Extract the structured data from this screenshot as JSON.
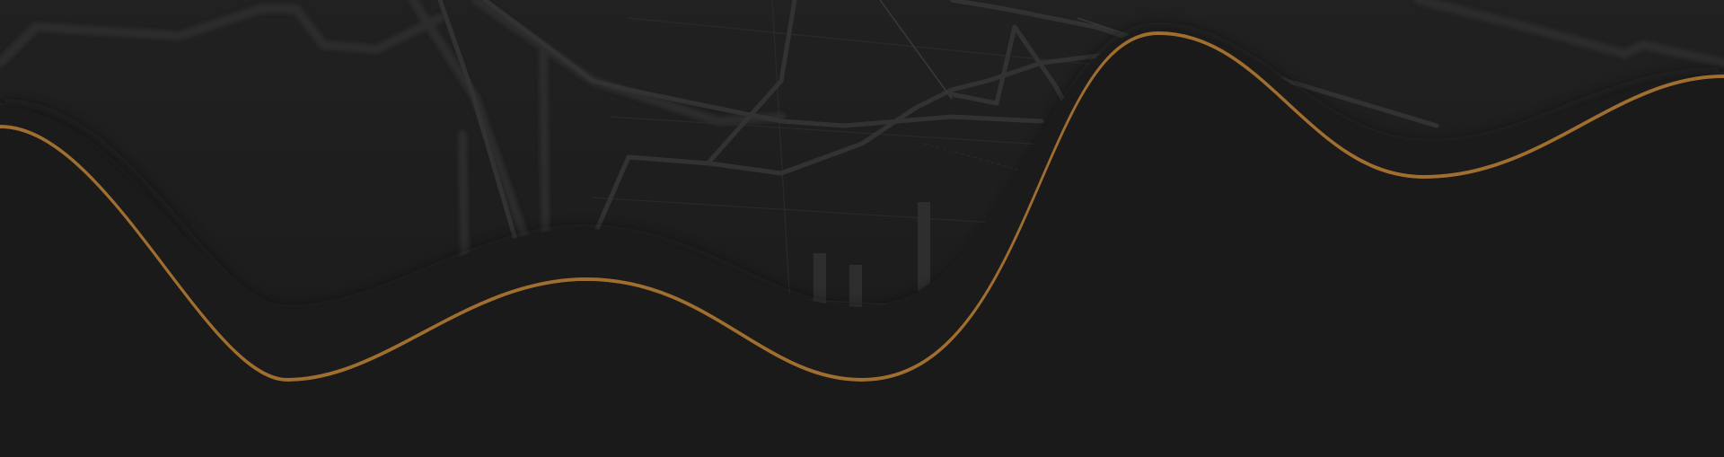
{
  "colors": {
    "background": "#1a1a1a",
    "overlay": "#1b1b1b",
    "shadow": "#161616",
    "chart_lines": "#3a3a3a",
    "accent_wave": "#a06e2e"
  }
}
